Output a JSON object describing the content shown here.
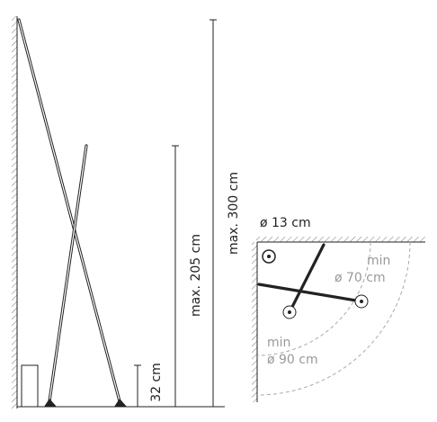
{
  "dimensions": {
    "total_height": "max. 300 cm",
    "short_height": "max. 205 cm",
    "base_height": "32 cm"
  },
  "plan": {
    "diameter": "ø 13 cm",
    "inner_min": "min",
    "inner_diameter": "ø 70 cm",
    "outer_min": "min",
    "outer_diameter": "ø 90 cm"
  }
}
